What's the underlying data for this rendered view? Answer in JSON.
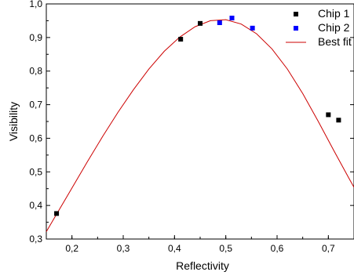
{
  "chart_data": {
    "type": "scatter",
    "xlabel": "Reflectivity",
    "ylabel": "Visibility",
    "xlim": [
      0.15,
      0.75
    ],
    "ylim": [
      0.3,
      1.0
    ],
    "x_ticks": [
      "0,2",
      "0,3",
      "0,4",
      "0,5",
      "0,6",
      "0,7"
    ],
    "y_ticks": [
      "0,3",
      "0,4",
      "0,5",
      "0,6",
      "0,7",
      "0,8",
      "0,9",
      "1,0"
    ],
    "grid": false,
    "legend_position": "top-right",
    "series": [
      {
        "name": "Chip 1",
        "kind": "scatter",
        "marker": "square",
        "color": "#000000",
        "points": [
          {
            "x": 0.17,
            "y": 0.376
          },
          {
            "x": 0.412,
            "y": 0.895
          },
          {
            "x": 0.45,
            "y": 0.942
          },
          {
            "x": 0.7,
            "y": 0.67
          },
          {
            "x": 0.72,
            "y": 0.654
          }
        ]
      },
      {
        "name": "Chip 2",
        "kind": "scatter",
        "marker": "square",
        "color": "#0000ff",
        "points": [
          {
            "x": 0.488,
            "y": 0.944
          },
          {
            "x": 0.512,
            "y": 0.958
          },
          {
            "x": 0.552,
            "y": 0.928
          }
        ]
      },
      {
        "name": "Best fit",
        "kind": "line",
        "color": "#cc0000",
        "x": [
          0.15,
          0.17,
          0.2,
          0.23,
          0.26,
          0.29,
          0.32,
          0.35,
          0.38,
          0.41,
          0.44,
          0.47,
          0.5,
          0.53,
          0.56,
          0.59,
          0.62,
          0.65,
          0.68,
          0.71,
          0.74,
          0.75
        ],
        "y": [
          0.322,
          0.374,
          0.452,
          0.53,
          0.606,
          0.678,
          0.745,
          0.806,
          0.859,
          0.901,
          0.932,
          0.95,
          0.953,
          0.94,
          0.911,
          0.866,
          0.806,
          0.733,
          0.651,
          0.565,
          0.481,
          0.454
        ]
      }
    ]
  }
}
